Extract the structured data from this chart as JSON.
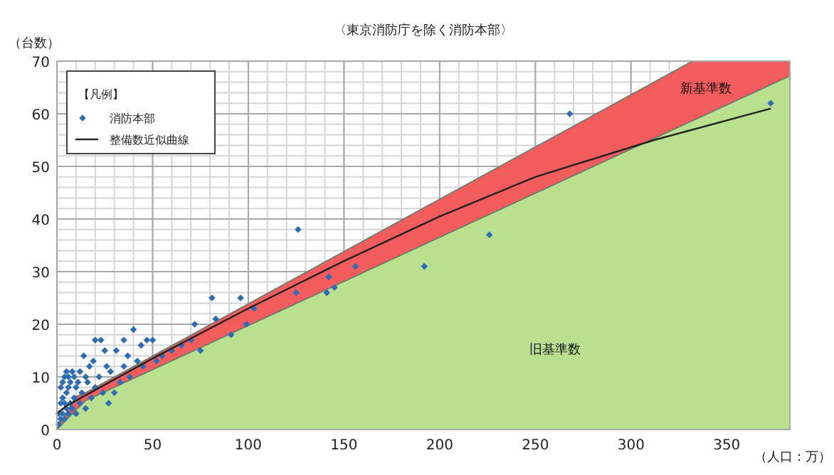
{
  "chart_data": {
    "type": "scatter",
    "title": "〈東京消防庁を除く消防本部〉",
    "ylabel": "（台数）",
    "xlabel": "（人口：万）",
    "legend_title": "【凡例】",
    "xlim": [
      0,
      383
    ],
    "ylim": [
      0,
      70
    ],
    "xticks": [
      0,
      50,
      100,
      150,
      200,
      250,
      300,
      350
    ],
    "yticks": [
      0,
      10,
      20,
      30,
      40,
      50,
      60,
      70
    ],
    "grid": true,
    "legend": "top left",
    "marker": "diamond",
    "series": [
      {
        "name": "新基準数",
        "type": "area",
        "color": "#f25c5c",
        "x": [
          0,
          10,
          15,
          16,
          332,
          383
        ],
        "values": [
          0,
          6.3,
          7,
          7.2,
          70,
          70
        ],
        "marker": "none"
      },
      {
        "name": "旧基準数",
        "type": "area",
        "color": "#b9e08f",
        "x": [
          0,
          15,
          383
        ],
        "values": [
          0,
          5.5,
          67.2
        ],
        "marker": "none"
      },
      {
        "name": "消防本部",
        "color": "#2e6db4",
        "x": [
          1,
          1,
          2,
          2,
          2,
          3,
          3,
          3,
          4,
          4,
          4,
          5,
          5,
          5,
          6,
          6,
          6,
          7,
          7,
          8,
          8,
          9,
          9,
          10,
          10,
          11,
          12,
          12,
          13,
          14,
          15,
          15,
          16,
          17,
          18,
          19,
          20,
          20,
          22,
          23,
          24,
          25,
          26,
          27,
          28,
          30,
          31,
          33,
          35,
          35,
          37,
          38,
          40,
          42,
          44,
          45,
          47,
          50,
          52,
          55,
          60,
          65,
          70,
          72,
          75,
          81,
          83,
          91,
          96,
          99,
          103,
          126,
          125,
          142,
          141,
          145,
          156,
          192,
          226,
          268,
          373
        ],
        "values": [
          1,
          3,
          2,
          5,
          8,
          3,
          6,
          9,
          2,
          5,
          10,
          4,
          7,
          11,
          3,
          8,
          10,
          5,
          9,
          4,
          11,
          6,
          10,
          3,
          8,
          9,
          5,
          11,
          7,
          14,
          4,
          10,
          9,
          12,
          6,
          13,
          17,
          8,
          10,
          17,
          7,
          15,
          12,
          5,
          11,
          7,
          15,
          9,
          17,
          12,
          14,
          10,
          19,
          13,
          16,
          12,
          17,
          17,
          13,
          14,
          15,
          16,
          17,
          20,
          15,
          25,
          21,
          18,
          25,
          20,
          23,
          38,
          26,
          29,
          26,
          27,
          31,
          31,
          37,
          60,
          62
        ]
      },
      {
        "name": "整備数近似曲線",
        "type": "line",
        "color": "#222222",
        "x": [
          0,
          5,
          15,
          50,
          100,
          150,
          200,
          250,
          312,
          373
        ],
        "values": [
          3,
          4.5,
          6.5,
          13.5,
          23,
          32,
          40.5,
          48,
          55,
          61
        ],
        "marker": "none"
      }
    ]
  }
}
